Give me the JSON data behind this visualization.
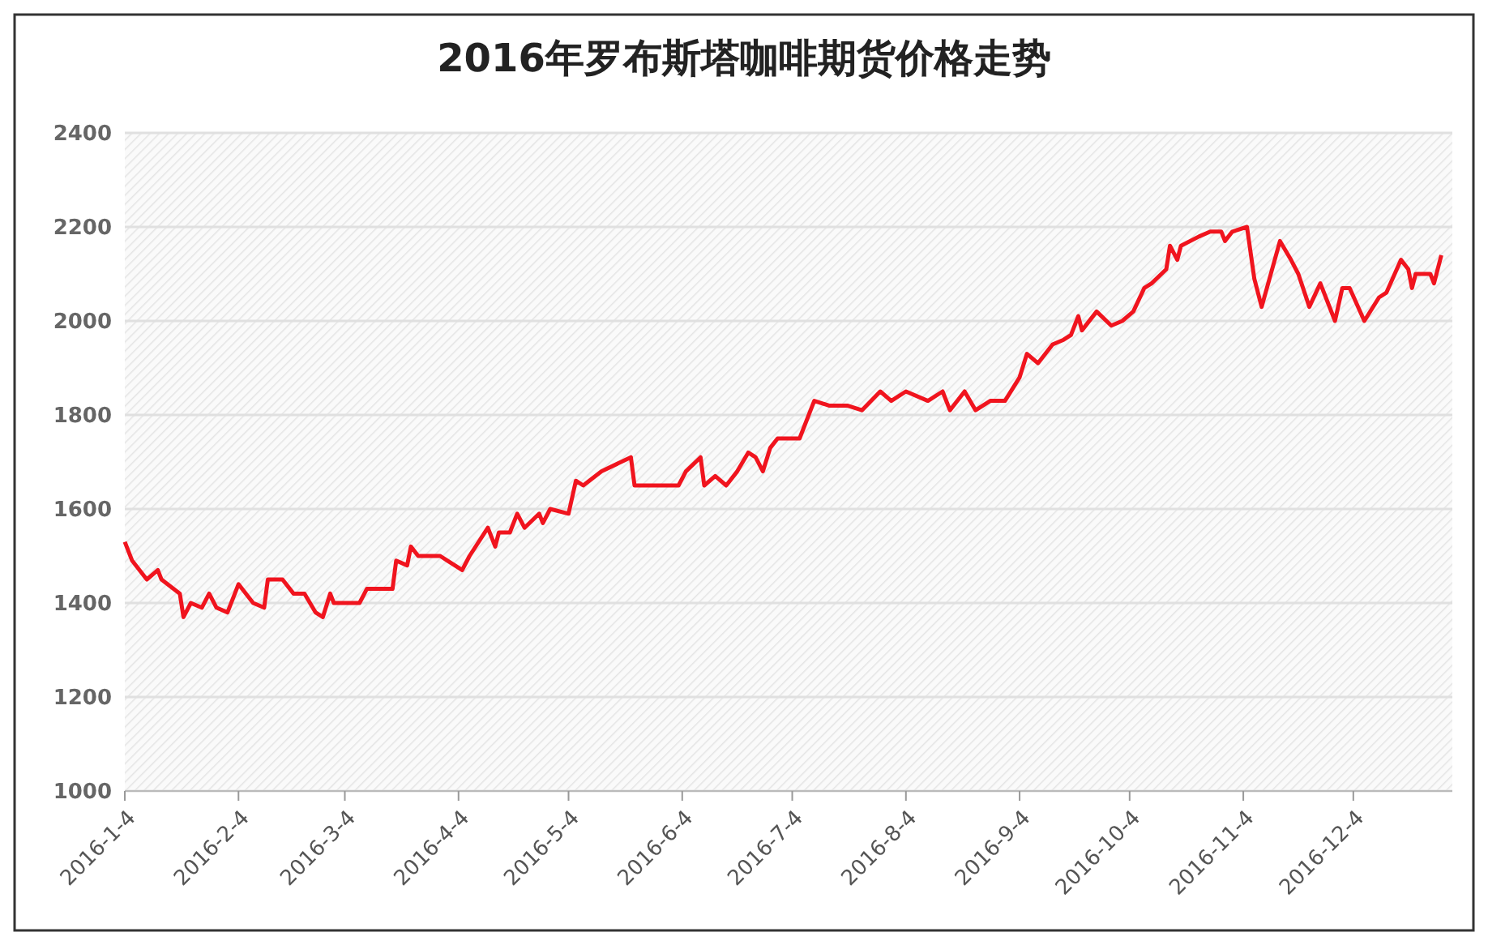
{
  "chart_data": {
    "type": "line",
    "title": "2016年罗布斯塔咖啡期货价格走势",
    "x": [
      "2016-01-04",
      "2016-01-06",
      "2016-01-10",
      "2016-01-13",
      "2016-01-14",
      "2016-01-19",
      "2016-01-20",
      "2016-01-22",
      "2016-01-25",
      "2016-01-27",
      "2016-01-29",
      "2016-02-01",
      "2016-02-04",
      "2016-02-08",
      "2016-02-11",
      "2016-02-12",
      "2016-02-16",
      "2016-02-19",
      "2016-02-22",
      "2016-02-25",
      "2016-02-27",
      "2016-02-29",
      "2016-03-01",
      "2016-03-08",
      "2016-03-10",
      "2016-03-14",
      "2016-03-17",
      "2016-03-18",
      "2016-03-21",
      "2016-03-22",
      "2016-03-24",
      "2016-03-30",
      "2016-04-01",
      "2016-04-05",
      "2016-04-07",
      "2016-04-12",
      "2016-04-14",
      "2016-04-15",
      "2016-04-18",
      "2016-04-20",
      "2016-04-22",
      "2016-04-26",
      "2016-04-27",
      "2016-04-29",
      "2016-05-04",
      "2016-05-06",
      "2016-05-08",
      "2016-05-13",
      "2016-05-21",
      "2016-05-22",
      "2016-05-28",
      "2016-06-03",
      "2016-06-05",
      "2016-06-09",
      "2016-06-10",
      "2016-06-13",
      "2016-06-16",
      "2016-06-19",
      "2016-06-22",
      "2016-06-24",
      "2016-06-26",
      "2016-06-28",
      "2016-06-30",
      "2016-07-06",
      "2016-07-10",
      "2016-07-14",
      "2016-07-19",
      "2016-07-23",
      "2016-07-28",
      "2016-07-31",
      "2016-08-04",
      "2016-08-10",
      "2016-08-14",
      "2016-08-16",
      "2016-08-20",
      "2016-08-23",
      "2016-08-27",
      "2016-08-31",
      "2016-09-04",
      "2016-09-06",
      "2016-09-09",
      "2016-09-13",
      "2016-09-16",
      "2016-09-18",
      "2016-09-20",
      "2016-09-21",
      "2016-09-25",
      "2016-09-29",
      "2016-10-02",
      "2016-10-05",
      "2016-10-08",
      "2016-10-10",
      "2016-10-14",
      "2016-10-15",
      "2016-10-17",
      "2016-10-18",
      "2016-10-23",
      "2016-10-26",
      "2016-10-29",
      "2016-10-30",
      "2016-11-01",
      "2016-11-05",
      "2016-11-07",
      "2016-11-09",
      "2016-11-14",
      "2016-11-17",
      "2016-11-19",
      "2016-11-22",
      "2016-11-25",
      "2016-11-29",
      "2016-12-01",
      "2016-12-03",
      "2016-12-07",
      "2016-12-11",
      "2016-12-13",
      "2016-12-17",
      "2016-12-19",
      "2016-12-20",
      "2016-12-21",
      "2016-12-25",
      "2016-12-26",
      "2016-12-28"
    ],
    "series": [
      {
        "color": "#f0141e",
        "values": [
          1530,
          1490,
          1450,
          1470,
          1450,
          1420,
          1370,
          1400,
          1390,
          1420,
          1390,
          1380,
          1440,
          1400,
          1390,
          1450,
          1450,
          1420,
          1420,
          1380,
          1370,
          1420,
          1400,
          1400,
          1430,
          1430,
          1430,
          1490,
          1480,
          1520,
          1500,
          1500,
          1490,
          1470,
          1500,
          1560,
          1520,
          1550,
          1550,
          1590,
          1560,
          1590,
          1570,
          1600,
          1590,
          1660,
          1650,
          1680,
          1710,
          1650,
          1650,
          1650,
          1680,
          1710,
          1650,
          1670,
          1650,
          1680,
          1720,
          1710,
          1680,
          1730,
          1750,
          1750,
          1830,
          1820,
          1820,
          1810,
          1850,
          1830,
          1850,
          1830,
          1850,
          1810,
          1850,
          1810,
          1830,
          1830,
          1880,
          1930,
          1910,
          1950,
          1960,
          1970,
          2010,
          1980,
          2020,
          1990,
          2000,
          2020,
          2070,
          2080,
          2110,
          2160,
          2130,
          2160,
          2180,
          2190,
          2190,
          2170,
          2190,
          2200,
          2090,
          2030,
          2170,
          2130,
          2100,
          2030,
          2080,
          2000,
          2070,
          2070,
          2000,
          2050,
          2060,
          2130,
          2110,
          2070,
          2100,
          2100,
          2080,
          2140
        ]
      }
    ],
    "xlim": [
      "2016-01-04",
      "2016-12-31"
    ],
    "xticks": [
      {
        "value": "2016-01-04",
        "label": "2016-1-4"
      },
      {
        "value": "2016-02-04",
        "label": "2016-2-4"
      },
      {
        "value": "2016-03-04",
        "label": "2016-3-4"
      },
      {
        "value": "2016-04-04",
        "label": "2016-4-4"
      },
      {
        "value": "2016-05-04",
        "label": "2016-5-4"
      },
      {
        "value": "2016-06-04",
        "label": "2016-6-4"
      },
      {
        "value": "2016-07-04",
        "label": "2016-7-4"
      },
      {
        "value": "2016-08-04",
        "label": "2016-8-4"
      },
      {
        "value": "2016-09-04",
        "label": "2016-9-4"
      },
      {
        "value": "2016-10-04",
        "label": "2016-10-4"
      },
      {
        "value": "2016-11-04",
        "label": "2016-11-4"
      },
      {
        "value": "2016-12-04",
        "label": "2016-12-4"
      }
    ],
    "ylim": [
      1000,
      2400
    ],
    "yticks": [
      1000,
      1200,
      1400,
      1600,
      1800,
      2000,
      2200,
      2400
    ],
    "grid": "y"
  }
}
